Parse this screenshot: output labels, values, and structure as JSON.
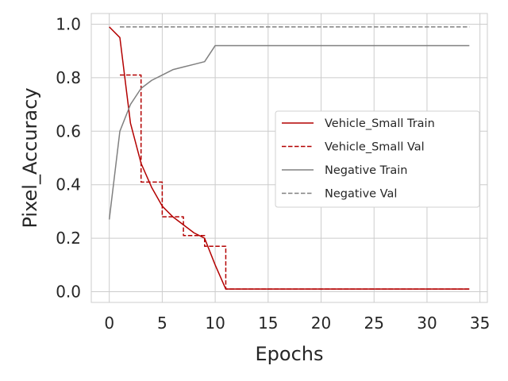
{
  "chart_data": {
    "type": "line",
    "title": "",
    "xlabel": "Epochs",
    "ylabel": "Pixel_Accuracy",
    "xlim": [
      -1.7,
      35.7
    ],
    "ylim": [
      -0.04,
      1.04
    ],
    "xticks": [
      0,
      5,
      10,
      15,
      20,
      25,
      30,
      35
    ],
    "xtick_labels": [
      "0",
      "5",
      "10",
      "15",
      "20",
      "25",
      "30",
      "35"
    ],
    "yticks": [
      0.0,
      0.2,
      0.4,
      0.6,
      0.8,
      1.0
    ],
    "ytick_labels": [
      "0.0",
      "0.2",
      "0.4",
      "0.6",
      "0.8",
      "1.0"
    ],
    "grid": true,
    "legend_position": "center-right",
    "series": [
      {
        "name": "Vehicle_Small Train",
        "color": "#b30000",
        "style": "solid",
        "x": [
          0,
          1,
          2,
          3,
          4,
          5,
          6,
          7,
          8,
          9,
          10,
          11,
          12,
          13,
          14,
          15,
          16,
          17,
          18,
          19,
          20,
          21,
          22,
          23,
          24,
          25,
          26,
          27,
          28,
          29,
          30,
          31,
          32,
          33,
          34
        ],
        "y": [
          0.99,
          0.95,
          0.63,
          0.48,
          0.39,
          0.32,
          0.28,
          0.25,
          0.22,
          0.2,
          0.1,
          0.01,
          0.01,
          0.01,
          0.01,
          0.01,
          0.01,
          0.01,
          0.01,
          0.01,
          0.01,
          0.01,
          0.01,
          0.01,
          0.01,
          0.01,
          0.01,
          0.01,
          0.01,
          0.01,
          0.01,
          0.01,
          0.01,
          0.01,
          0.01
        ]
      },
      {
        "name": "Vehicle_Small Val",
        "color": "#b30000",
        "style": "dashed",
        "drawstyle": "steps",
        "x": [
          1,
          2,
          3,
          4,
          5,
          6,
          7,
          8,
          9,
          10,
          11,
          12,
          13,
          14,
          15,
          16,
          17,
          18,
          19,
          20,
          21,
          22,
          23,
          24,
          25,
          26,
          27,
          28,
          29,
          30,
          31,
          32,
          33,
          34
        ],
        "y": [
          0.81,
          0.81,
          0.41,
          0.41,
          0.28,
          0.28,
          0.21,
          0.21,
          0.17,
          0.17,
          0.01,
          0.01,
          0.01,
          0.01,
          0.01,
          0.01,
          0.01,
          0.01,
          0.01,
          0.01,
          0.01,
          0.01,
          0.01,
          0.01,
          0.01,
          0.01,
          0.01,
          0.01,
          0.01,
          0.01,
          0.01,
          0.01,
          0.01,
          0.01
        ]
      },
      {
        "name": "Negative Train",
        "color": "#808080",
        "style": "solid",
        "x": [
          0,
          1,
          2,
          3,
          4,
          5,
          6,
          7,
          8,
          9,
          10,
          11,
          12,
          13,
          14,
          15,
          16,
          17,
          18,
          19,
          20,
          21,
          22,
          23,
          24,
          25,
          26,
          27,
          28,
          29,
          30,
          31,
          32,
          33,
          34
        ],
        "y": [
          0.27,
          0.6,
          0.7,
          0.76,
          0.79,
          0.81,
          0.83,
          0.84,
          0.85,
          0.86,
          0.92,
          0.92,
          0.92,
          0.92,
          0.92,
          0.92,
          0.92,
          0.92,
          0.92,
          0.92,
          0.92,
          0.92,
          0.92,
          0.92,
          0.92,
          0.92,
          0.92,
          0.92,
          0.92,
          0.92,
          0.92,
          0.92,
          0.92,
          0.92,
          0.92
        ]
      },
      {
        "name": "Negative Val",
        "color": "#808080",
        "style": "dashed",
        "x": [
          1,
          2,
          3,
          4,
          5,
          6,
          7,
          8,
          9,
          10,
          11,
          12,
          13,
          14,
          15,
          16,
          17,
          18,
          19,
          20,
          21,
          22,
          23,
          24,
          25,
          26,
          27,
          28,
          29,
          30,
          31,
          32,
          33,
          34
        ],
        "y": [
          0.99,
          0.99,
          0.99,
          0.99,
          0.99,
          0.99,
          0.99,
          0.99,
          0.99,
          0.99,
          0.99,
          0.99,
          0.99,
          0.99,
          0.99,
          0.99,
          0.99,
          0.99,
          0.99,
          0.99,
          0.99,
          0.99,
          0.99,
          0.99,
          0.99,
          0.99,
          0.99,
          0.99,
          0.99,
          0.99,
          0.99,
          0.99,
          0.99,
          0.99
        ]
      }
    ]
  }
}
